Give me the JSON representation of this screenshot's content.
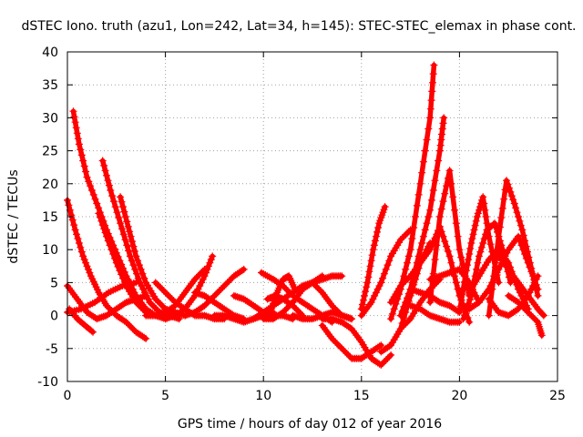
{
  "chart_data": {
    "type": "scatter",
    "title": "dSTEC Iono. truth (azu1, Lon=242, Lat=34, h=145): STEC-STEC_elemax in phase cont.",
    "xlabel": "GPS time / hours of day 012 of year 2016",
    "ylabel": "dSTEC  / TECUs",
    "xlim": [
      0,
      25
    ],
    "ylim": [
      -10,
      40
    ],
    "xticks": [
      0,
      5,
      10,
      15,
      20,
      25
    ],
    "yticks": [
      -10,
      -5,
      0,
      5,
      10,
      15,
      20,
      25,
      30,
      35,
      40
    ],
    "xtick_labels": [
      "0",
      "5",
      "10",
      "15",
      "20",
      "25"
    ],
    "ytick_labels": [
      "-10",
      "-5",
      "0",
      "5",
      "10",
      "15",
      "20",
      "25",
      "30",
      "35",
      "40"
    ],
    "grid": true,
    "legend": "none",
    "marker": "+",
    "color": "#ff0000",
    "series": [
      {
        "x": [
          0.0,
          0.4,
          0.8,
          1.2,
          1.6,
          2.0,
          2.5,
          3.0,
          3.5,
          4.0
        ],
        "y": [
          17.5,
          13.0,
          9.0,
          6.0,
          3.5,
          1.5,
          0.0,
          -1.0,
          -2.5,
          -3.5
        ]
      },
      {
        "x": [
          0.3,
          0.6,
          1.0,
          1.5,
          2.0,
          2.5,
          3.0,
          3.5,
          4.0,
          4.5,
          5.0
        ],
        "y": [
          31.0,
          26.0,
          21.0,
          17.0,
          13.0,
          9.5,
          6.0,
          3.0,
          1.0,
          0.0,
          -0.5
        ]
      },
      {
        "x": [
          1.8,
          2.2,
          2.7,
          3.2,
          3.7,
          4.2,
          4.7,
          5.2,
          5.7
        ],
        "y": [
          23.5,
          19.0,
          14.0,
          9.0,
          5.0,
          2.0,
          0.5,
          0.0,
          -0.5
        ]
      },
      {
        "x": [
          1.6,
          2.0,
          2.5,
          3.0,
          3.5,
          4.0
        ],
        "y": [
          15.5,
          12.0,
          8.0,
          4.5,
          2.0,
          0.5
        ]
      },
      {
        "x": [
          2.7,
          3.1,
          3.5,
          4.0,
          4.5,
          5.0,
          5.5,
          6.0
        ],
        "y": [
          18.0,
          13.5,
          9.0,
          5.0,
          2.5,
          1.0,
          0.5,
          0.0
        ]
      },
      {
        "x": [
          0.0,
          0.5,
          1.0,
          1.5,
          2.0,
          2.5,
          3.0,
          3.5,
          4.0
        ],
        "y": [
          4.5,
          2.5,
          0.5,
          -0.5,
          0.0,
          1.0,
          2.0,
          2.5,
          3.0
        ]
      },
      {
        "x": [
          0.1,
          0.5,
          0.9,
          1.3
        ],
        "y": [
          1.0,
          -0.5,
          -1.5,
          -2.5
        ]
      },
      {
        "x": [
          0.0,
          0.7,
          1.4,
          2.1,
          2.8,
          3.5
        ],
        "y": [
          0.5,
          1.0,
          2.0,
          3.5,
          4.5,
          5.0
        ]
      },
      {
        "x": [
          4.5,
          5.0,
          5.5,
          6.0,
          6.5,
          7.0,
          7.5,
          8.0
        ],
        "y": [
          5.0,
          3.5,
          2.0,
          1.0,
          0.0,
          0.0,
          -0.5,
          -0.5
        ]
      },
      {
        "x": [
          4.0,
          4.5,
          5.0,
          5.5,
          6.0,
          6.5,
          7.0
        ],
        "y": [
          0.0,
          0.0,
          0.5,
          1.5,
          3.5,
          5.5,
          7.0
        ]
      },
      {
        "x": [
          5.0,
          5.5,
          6.0,
          6.5,
          7.0,
          7.4
        ],
        "y": [
          -0.5,
          0.0,
          1.0,
          3.0,
          6.0,
          9.0
        ]
      },
      {
        "x": [
          6.0,
          6.5,
          7.0,
          7.5,
          8.0,
          8.5,
          9.0
        ],
        "y": [
          0.0,
          0.5,
          1.5,
          3.0,
          4.5,
          6.0,
          7.0
        ]
      },
      {
        "x": [
          6.5,
          7.0,
          7.5,
          8.0,
          8.5,
          9.0
        ],
        "y": [
          3.5,
          3.0,
          2.0,
          1.0,
          0.0,
          -0.5
        ]
      },
      {
        "x": [
          7.5,
          8.0,
          8.5,
          9.0,
          9.5,
          10.0,
          10.5
        ],
        "y": [
          0.0,
          0.0,
          -0.5,
          -1.0,
          -0.5,
          0.0,
          0.5
        ]
      },
      {
        "x": [
          8.5,
          9.0,
          9.5,
          10.0,
          10.5,
          11.0,
          11.5
        ],
        "y": [
          3.0,
          2.5,
          1.5,
          0.5,
          0.0,
          0.0,
          -0.5
        ]
      },
      {
        "x": [
          9.5,
          10.0,
          10.5,
          11.0,
          11.5,
          12.0,
          12.5,
          13.0
        ],
        "y": [
          -0.5,
          0.5,
          1.5,
          2.5,
          3.5,
          4.5,
          5.0,
          6.0
        ]
      },
      {
        "x": [
          10.0,
          10.5,
          11.0,
          11.5,
          12.0,
          12.5,
          13.0,
          13.5,
          14.0
        ],
        "y": [
          -0.5,
          -0.5,
          0.5,
          2.0,
          4.0,
          5.0,
          5.5,
          6.0,
          6.0
        ]
      },
      {
        "x": [
          10.2,
          10.6,
          11.0,
          11.5,
          12.0
        ],
        "y": [
          2.5,
          3.0,
          2.5,
          1.5,
          0.0
        ]
      },
      {
        "x": [
          10.4,
          10.7,
          11.0,
          11.3,
          11.6
        ],
        "y": [
          1.0,
          3.5,
          5.5,
          6.0,
          4.0
        ]
      },
      {
        "x": [
          9.9,
          10.5,
          11.0,
          11.5,
          12.0,
          12.5,
          13.0,
          13.5
        ],
        "y": [
          6.5,
          5.5,
          4.5,
          3.0,
          2.0,
          1.0,
          0.0,
          -1.0
        ]
      },
      {
        "x": [
          11.5,
          12.0,
          12.5,
          13.0,
          13.5,
          14.0,
          14.5
        ],
        "y": [
          0.0,
          -0.5,
          -0.5,
          0.0,
          0.5,
          0.0,
          -0.5
        ]
      },
      {
        "x": [
          12.5,
          13.0,
          13.5,
          14.0,
          14.5
        ],
        "y": [
          5.0,
          3.5,
          1.5,
          0.0,
          -0.5
        ]
      },
      {
        "x": [
          13.0,
          13.5,
          14.0,
          14.5,
          15.0,
          15.5,
          16.0
        ],
        "y": [
          -1.5,
          -3.5,
          -5.0,
          -6.5,
          -6.5,
          -5.5,
          -4.5
        ]
      },
      {
        "x": [
          13.0,
          13.5,
          14.0,
          14.5,
          15.0,
          15.5,
          16.0,
          16.5
        ],
        "y": [
          -0.5,
          -0.5,
          -1.0,
          -2.0,
          -4.0,
          -6.5,
          -7.5,
          -6.0
        ]
      },
      {
        "x": [
          15.0,
          15.3,
          15.6,
          15.9,
          16.2
        ],
        "y": [
          1.0,
          5.0,
          10.0,
          14.0,
          16.5
        ]
      },
      {
        "x": [
          15.0,
          15.5,
          16.0,
          16.5,
          17.0,
          17.5
        ],
        "y": [
          0.0,
          2.0,
          5.0,
          9.0,
          11.5,
          13.0
        ]
      },
      {
        "x": [
          16.0,
          16.5,
          17.0,
          17.5,
          18.0,
          18.5
        ],
        "y": [
          -5.5,
          -4.5,
          -2.0,
          3.0,
          8.0,
          11.0
        ]
      },
      {
        "x": [
          16.5,
          17.0,
          17.5,
          18.0,
          18.5,
          18.7
        ],
        "y": [
          -0.5,
          4.0,
          10.0,
          20.0,
          30.0,
          38.0
        ]
      },
      {
        "x": [
          17.0,
          17.5,
          18.0,
          18.5,
          19.0,
          19.2
        ],
        "y": [
          0.0,
          4.0,
          10.0,
          16.0,
          25.0,
          30.0
        ]
      },
      {
        "x": [
          16.5,
          17.0,
          17.5,
          18.0,
          18.5,
          19.0,
          19.5,
          20.0,
          20.5
        ],
        "y": [
          2.0,
          4.5,
          6.0,
          8.0,
          10.0,
          13.5,
          9.0,
          3.0,
          -1.0
        ]
      },
      {
        "x": [
          17.5,
          18.0,
          18.5,
          19.0,
          19.5,
          20.0
        ],
        "y": [
          1.5,
          1.0,
          0.0,
          -0.5,
          -1.0,
          -1.0
        ]
      },
      {
        "x": [
          17.5,
          18.0,
          18.5,
          19.0,
          19.5,
          20.0
        ],
        "y": [
          4.0,
          3.5,
          3.0,
          2.0,
          1.5,
          0.5
        ]
      },
      {
        "x": [
          17.0,
          17.5,
          18.0,
          18.5,
          19.0
        ],
        "y": [
          -2.0,
          -0.5,
          2.0,
          4.0,
          5.5
        ]
      },
      {
        "x": [
          18.5,
          19.0,
          19.5,
          20.0,
          20.5
        ],
        "y": [
          2.0,
          15.0,
          22.0,
          10.0,
          3.0
        ]
      },
      {
        "x": [
          18.5,
          19.0,
          19.5,
          20.0,
          20.5,
          21.0
        ],
        "y": [
          5.5,
          6.0,
          6.5,
          7.0,
          5.0,
          2.0
        ]
      },
      {
        "x": [
          20.0,
          20.3,
          20.6,
          20.9,
          21.2,
          21.5,
          22.0
        ],
        "y": [
          0.5,
          6.0,
          11.0,
          15.0,
          18.0,
          12.0,
          5.0
        ]
      },
      {
        "x": [
          20.2,
          20.6,
          21.0,
          21.4,
          21.8,
          22.2,
          22.6
        ],
        "y": [
          -0.5,
          3.0,
          9.0,
          13.0,
          14.0,
          10.0,
          5.0
        ]
      },
      {
        "x": [
          20.5,
          21.0,
          21.5,
          22.0,
          22.5,
          23.0,
          23.5
        ],
        "y": [
          3.5,
          6.0,
          8.5,
          10.0,
          8.0,
          4.0,
          1.0
        ]
      },
      {
        "x": [
          20.5,
          21.0,
          21.5,
          22.0,
          22.5,
          23.0,
          23.5,
          24.0
        ],
        "y": [
          1.0,
          2.0,
          4.0,
          7.0,
          10.0,
          12.0,
          8.0,
          4.0
        ]
      },
      {
        "x": [
          21.5,
          22.0,
          22.4,
          22.8,
          23.2,
          23.6,
          24.0
        ],
        "y": [
          0.0,
          12.0,
          20.5,
          17.0,
          13.0,
          8.0,
          3.0
        ]
      },
      {
        "x": [
          21.5,
          22.0,
          22.5,
          23.0,
          23.5,
          24.0
        ],
        "y": [
          2.5,
          0.5,
          0.0,
          1.0,
          3.0,
          6.0
        ]
      },
      {
        "x": [
          22.5,
          23.0,
          23.5,
          24.0,
          24.2
        ],
        "y": [
          3.0,
          2.0,
          0.5,
          -1.0,
          -3.0
        ]
      },
      {
        "x": [
          22.0,
          22.5,
          23.0,
          23.5,
          24.0,
          24.3
        ],
        "y": [
          9.0,
          7.0,
          5.0,
          3.0,
          1.0,
          0.0
        ]
      }
    ]
  }
}
